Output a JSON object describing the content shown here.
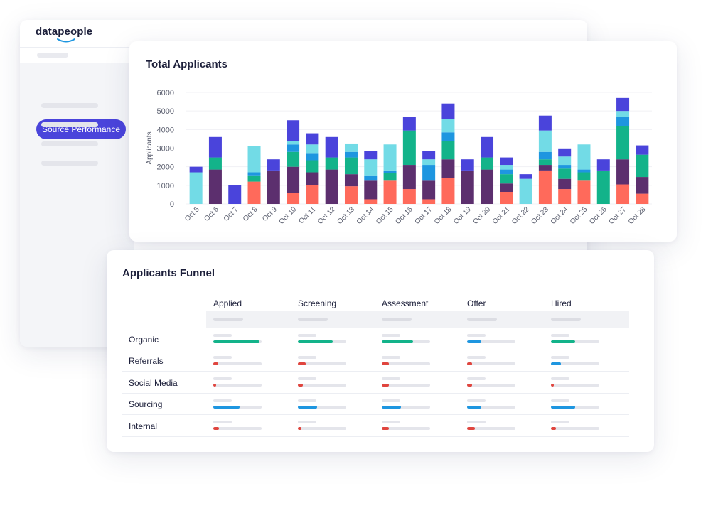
{
  "app": {
    "logo_text": "datapeople",
    "nav_active_label": "Source Performance"
  },
  "colors": {
    "accent": "#4a44db",
    "series": [
      "#ff6a5b",
      "#5c2f6e",
      "#13b38a",
      "#1e96e0",
      "#72dbe6",
      "#4a44db"
    ],
    "bar_green": "#13b38a",
    "bar_blue": "#1e96e0",
    "bar_red": "#e0453e"
  },
  "chart_data": {
    "type": "bar",
    "stacked": true,
    "title": "Total Applicants",
    "ylabel": "Applicants",
    "xlabel": "",
    "ylim": [
      0,
      6000
    ],
    "yticks": [
      0,
      1000,
      2000,
      3000,
      4000,
      5000,
      6000
    ],
    "grid": true,
    "categories": [
      "Oct 5",
      "Oct 6",
      "Oct 7",
      "Oct 8",
      "Oct 9",
      "Oct 10",
      "Oct 11",
      "Oct 12",
      "Oct 13",
      "Oct 14",
      "Oct 15",
      "Oct 16",
      "Oct 17",
      "Oct 18",
      "Oct 19",
      "Oct 20",
      "Oct 21",
      "Oct 22",
      "Oct 23",
      "Oct 24",
      "Oct 25",
      "Oct 26",
      "Oct 27",
      "Oct 28"
    ],
    "series": [
      {
        "values": [
          0,
          0,
          0,
          1200,
          0,
          600,
          1000,
          0,
          950,
          250,
          1250,
          800,
          250,
          1400,
          0,
          0,
          650,
          0,
          1800,
          800,
          1250,
          0,
          1050,
          550
        ]
      },
      {
        "values": [
          0,
          1850,
          0,
          0,
          1800,
          1400,
          700,
          1850,
          650,
          1000,
          0,
          1300,
          1000,
          1000,
          1800,
          1850,
          450,
          0,
          300,
          550,
          0,
          0,
          1350,
          900
        ]
      },
      {
        "values": [
          0,
          650,
          0,
          300,
          0,
          800,
          650,
          650,
          900,
          0,
          400,
          1850,
          0,
          1000,
          0,
          650,
          500,
          0,
          300,
          550,
          450,
          1800,
          1800,
          1200
        ]
      },
      {
        "values": [
          0,
          0,
          0,
          200,
          0,
          400,
          350,
          0,
          300,
          250,
          150,
          0,
          850,
          450,
          0,
          0,
          250,
          0,
          400,
          200,
          150,
          0,
          500,
          0
        ]
      },
      {
        "values": [
          1700,
          0,
          0,
          1400,
          0,
          200,
          500,
          0,
          450,
          900,
          1400,
          0,
          300,
          700,
          0,
          0,
          250,
          1350,
          1150,
          450,
          1350,
          0,
          300,
          0
        ]
      },
      {
        "values": [
          300,
          1100,
          1000,
          0,
          600,
          1100,
          600,
          1100,
          0,
          450,
          0,
          750,
          450,
          850,
          600,
          1100,
          400,
          250,
          800,
          400,
          0,
          600,
          700,
          500
        ]
      }
    ]
  },
  "funnel": {
    "title": "Applicants Funnel",
    "columns": [
      "Applied",
      "Screening",
      "Assessment",
      "Offer",
      "Hired"
    ],
    "rows": [
      {
        "label": "Organic",
        "levels": [
          0.95,
          0.72,
          0.64,
          0.3,
          0.5
        ],
        "colors": [
          "green",
          "green",
          "green",
          "blue",
          "green"
        ]
      },
      {
        "label": "Referrals",
        "levels": [
          0.1,
          0.16,
          0.14,
          0.1,
          0.2
        ],
        "colors": [
          "red",
          "red",
          "red",
          "red",
          "blue"
        ]
      },
      {
        "label": "Social Media",
        "levels": [
          0.06,
          0.1,
          0.14,
          0.1,
          0.06
        ],
        "colors": [
          "red",
          "red",
          "red",
          "red",
          "red"
        ]
      },
      {
        "label": "Sourcing",
        "levels": [
          0.55,
          0.4,
          0.4,
          0.3,
          0.5
        ],
        "colors": [
          "blue",
          "blue",
          "blue",
          "blue",
          "blue"
        ]
      },
      {
        "label": "Internal",
        "levels": [
          0.12,
          0.08,
          0.14,
          0.16,
          0.1
        ],
        "colors": [
          "red",
          "red",
          "red",
          "red",
          "red"
        ]
      }
    ]
  }
}
